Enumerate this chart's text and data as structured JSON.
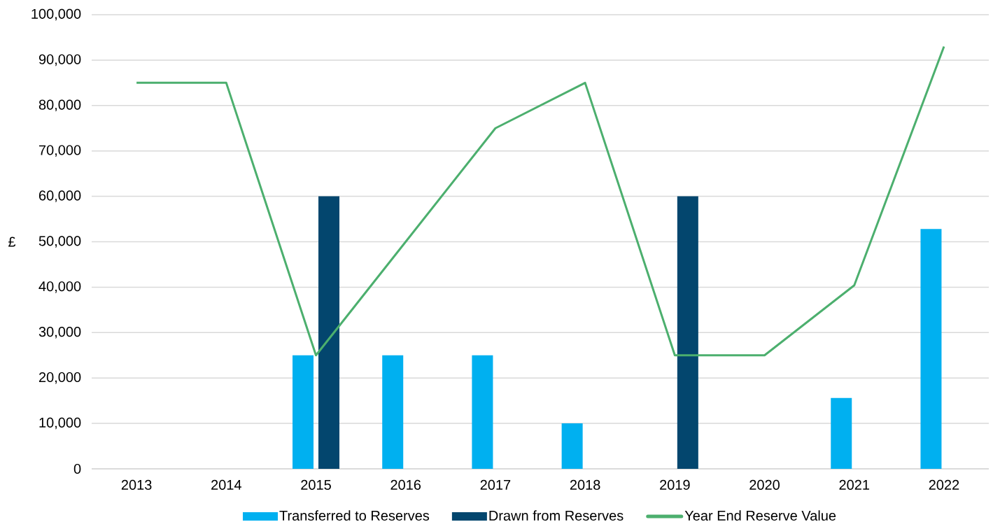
{
  "chart_data": {
    "type": "bar",
    "categories": [
      "2013",
      "2014",
      "2015",
      "2016",
      "2017",
      "2018",
      "2019",
      "2020",
      "2021",
      "2022"
    ],
    "series": [
      {
        "name": "Transferred to Reserves",
        "color": "#00b0f0",
        "values": [
          null,
          null,
          25000,
          25000,
          25000,
          10000,
          null,
          null,
          15600,
          52800
        ]
      },
      {
        "name": "Drawn from Reserves",
        "color": "#03466e",
        "values": [
          null,
          null,
          60000,
          null,
          null,
          null,
          60000,
          null,
          null,
          null
        ]
      },
      {
        "name": "Year End Reserve Value",
        "type": "line",
        "color": "#4caf6e",
        "values": [
          85000,
          85000,
          25000,
          50000,
          75000,
          85000,
          25000,
          25000,
          40400,
          93000
        ]
      }
    ],
    "ylabel": "£",
    "ylim": [
      0,
      100000
    ],
    "yticks": [
      {
        "value": 0,
        "label": "0"
      },
      {
        "value": 10000,
        "label": "10,000"
      },
      {
        "value": 20000,
        "label": "20,000"
      },
      {
        "value": 30000,
        "label": "30,000"
      },
      {
        "value": 40000,
        "label": "40,000"
      },
      {
        "value": 50000,
        "label": "50,000"
      },
      {
        "value": 60000,
        "label": "60,000"
      },
      {
        "value": 70000,
        "label": "70,000"
      },
      {
        "value": 80000,
        "label": "80,000"
      },
      {
        "value": 90000,
        "label": "90,000"
      },
      {
        "value": 100000,
        "label": "100,000"
      }
    ],
    "grid": "y",
    "legend": "bottom"
  }
}
